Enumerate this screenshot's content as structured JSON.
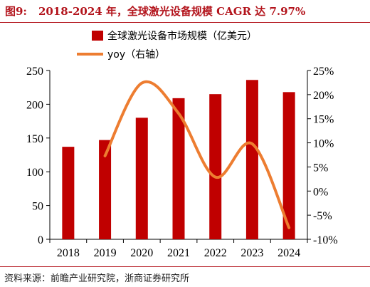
{
  "title": {
    "figure_no": "图9:",
    "text": "2018-2024 年，全球激光设备规模 CAGR 达 7.97%"
  },
  "source": "资料来源：前瞻产业研究院，浙商证券研究所",
  "colors": {
    "bar": "#c00000",
    "line": "#ed7d31",
    "title": "#b3141c"
  },
  "chart_data": {
    "type": "bar",
    "categories": [
      "2018",
      "2019",
      "2020",
      "2021",
      "2022",
      "2023",
      "2024"
    ],
    "series": [
      {
        "name": "全球激光设备市场规模（亿美元）",
        "type": "bar",
        "axis": "left",
        "values": [
          137,
          147,
          180,
          209,
          215,
          236,
          218
        ]
      },
      {
        "name": "yoy（右轴）",
        "type": "line",
        "axis": "right",
        "values": [
          7.3,
          22.4,
          16.1,
          2.9,
          9.8,
          -7.6
        ],
        "x": [
          "2019",
          "2020",
          "2021",
          "2022",
          "2023",
          "2024"
        ],
        "smooth": true
      }
    ],
    "left_axis": {
      "ylim": [
        0,
        250
      ],
      "ticks": [
        "0",
        "50",
        "100",
        "150",
        "200",
        "250"
      ]
    },
    "right_axis": {
      "ylim": [
        -10,
        25
      ],
      "ticks": [
        "-10%",
        "-5%",
        "0%",
        "5%",
        "10%",
        "15%",
        "20%",
        "25%"
      ]
    },
    "xlabel": "",
    "ylabel": "",
    "grid": false,
    "legend_position": "top-center"
  }
}
